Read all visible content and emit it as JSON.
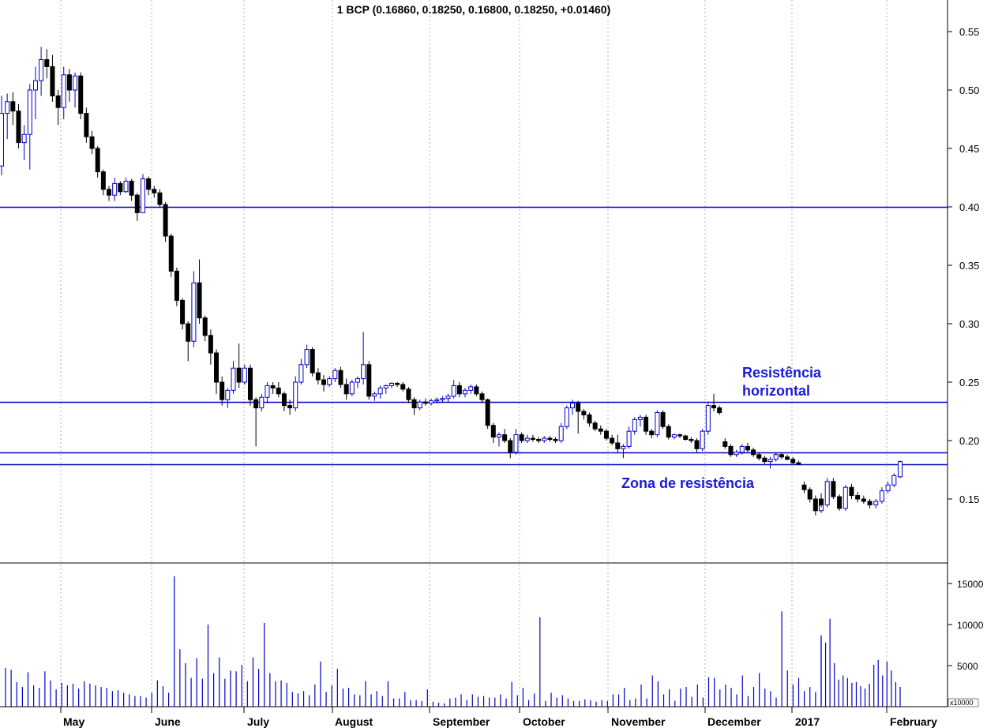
{
  "chart_data": {
    "type": "candlestick",
    "title": "1 BCP (0.16860, 0.18250, 0.16800, 0.18250, +0.01460)",
    "ylim": [
      0.1,
      0.575
    ],
    "y_ticks": [
      "0.55",
      "0.50",
      "0.45",
      "0.40",
      "0.35",
      "0.30",
      "0.25",
      "0.20",
      "0.15"
    ],
    "volume_ticks": [
      "15000",
      "10000",
      "5000"
    ],
    "volume_unit": "x10000",
    "months": [
      "May",
      "June",
      "July",
      "August",
      "September",
      "October",
      "November",
      "December",
      "2017",
      "February"
    ],
    "horizontal_lines": [
      0.4,
      0.233,
      0.19,
      0.18
    ],
    "annotations": [
      {
        "text": "Resistência",
        "anchor": "upper"
      },
      {
        "text": "horizontal",
        "anchor": "upper"
      },
      {
        "text": "Zona de resistência",
        "anchor": "lower"
      }
    ],
    "price_series": [
      [
        0.435,
        0.495,
        0.427,
        0.48
      ],
      [
        0.48,
        0.497,
        0.458,
        0.49
      ],
      [
        0.49,
        0.498,
        0.47,
        0.482
      ],
      [
        0.482,
        0.488,
        0.45,
        0.455
      ],
      [
        0.455,
        0.47,
        0.44,
        0.462
      ],
      [
        0.462,
        0.505,
        0.432,
        0.5
      ],
      [
        0.5,
        0.52,
        0.475,
        0.508
      ],
      [
        0.508,
        0.537,
        0.495,
        0.526
      ],
      [
        0.526,
        0.535,
        0.51,
        0.52
      ],
      [
        0.52,
        0.53,
        0.49,
        0.495
      ],
      [
        0.495,
        0.5,
        0.47,
        0.485
      ],
      [
        0.485,
        0.52,
        0.475,
        0.513
      ],
      [
        0.513,
        0.518,
        0.49,
        0.5
      ],
      [
        0.5,
        0.515,
        0.485,
        0.512
      ],
      [
        0.512,
        0.515,
        0.475,
        0.48
      ],
      [
        0.48,
        0.485,
        0.455,
        0.46
      ],
      [
        0.46,
        0.465,
        0.445,
        0.45
      ],
      [
        0.45,
        0.452,
        0.425,
        0.43
      ],
      [
        0.43,
        0.432,
        0.41,
        0.415
      ],
      [
        0.415,
        0.418,
        0.405,
        0.41
      ],
      [
        0.41,
        0.425,
        0.405,
        0.42
      ],
      [
        0.42,
        0.422,
        0.41,
        0.413
      ],
      [
        0.413,
        0.425,
        0.412,
        0.422
      ],
      [
        0.422,
        0.424,
        0.405,
        0.41
      ],
      [
        0.41,
        0.412,
        0.388,
        0.395
      ],
      [
        0.395,
        0.428,
        0.395,
        0.424
      ],
      [
        0.424,
        0.426,
        0.41,
        0.415
      ],
      [
        0.415,
        0.418,
        0.408,
        0.412
      ],
      [
        0.412,
        0.415,
        0.4,
        0.402
      ],
      [
        0.402,
        0.404,
        0.37,
        0.375
      ],
      [
        0.375,
        0.377,
        0.34,
        0.345
      ],
      [
        0.345,
        0.348,
        0.315,
        0.32
      ],
      [
        0.32,
        0.322,
        0.295,
        0.3
      ],
      [
        0.3,
        0.302,
        0.268,
        0.285
      ],
      [
        0.285,
        0.345,
        0.28,
        0.335
      ],
      [
        0.335,
        0.355,
        0.3,
        0.305
      ],
      [
        0.305,
        0.307,
        0.285,
        0.29
      ],
      [
        0.29,
        0.295,
        0.265,
        0.275
      ],
      [
        0.275,
        0.278,
        0.24,
        0.25
      ],
      [
        0.25,
        0.255,
        0.23,
        0.235
      ],
      [
        0.235,
        0.245,
        0.228,
        0.243
      ],
      [
        0.243,
        0.268,
        0.24,
        0.262
      ],
      [
        0.262,
        0.283,
        0.245,
        0.25
      ],
      [
        0.25,
        0.265,
        0.248,
        0.262
      ],
      [
        0.262,
        0.265,
        0.23,
        0.235
      ],
      [
        0.235,
        0.237,
        0.195,
        0.228
      ],
      [
        0.228,
        0.24,
        0.225,
        0.237
      ],
      [
        0.237,
        0.25,
        0.232,
        0.247
      ],
      [
        0.247,
        0.25,
        0.24,
        0.245
      ],
      [
        0.245,
        0.25,
        0.237,
        0.24
      ],
      [
        0.24,
        0.242,
        0.225,
        0.23
      ],
      [
        0.23,
        0.235,
        0.222,
        0.228
      ],
      [
        0.228,
        0.255,
        0.225,
        0.25
      ],
      [
        0.25,
        0.27,
        0.248,
        0.265
      ],
      [
        0.265,
        0.282,
        0.262,
        0.278
      ],
      [
        0.278,
        0.28,
        0.255,
        0.258
      ],
      [
        0.258,
        0.262,
        0.248,
        0.252
      ],
      [
        0.252,
        0.256,
        0.242,
        0.248
      ],
      [
        0.248,
        0.255,
        0.246,
        0.253
      ],
      [
        0.253,
        0.262,
        0.25,
        0.26
      ],
      [
        0.26,
        0.263,
        0.245,
        0.248
      ],
      [
        0.248,
        0.253,
        0.235,
        0.24
      ],
      [
        0.24,
        0.252,
        0.238,
        0.25
      ],
      [
        0.25,
        0.255,
        0.245,
        0.253
      ],
      [
        0.253,
        0.293,
        0.248,
        0.265
      ],
      [
        0.265,
        0.268,
        0.235,
        0.238
      ],
      [
        0.238,
        0.242,
        0.234,
        0.24
      ],
      [
        0.24,
        0.247,
        0.236,
        0.245
      ],
      [
        0.245,
        0.248,
        0.24,
        0.247
      ],
      [
        0.247,
        0.25,
        0.245,
        0.249
      ],
      [
        0.249,
        0.25,
        0.246,
        0.248
      ],
      [
        0.248,
        0.25,
        0.242,
        0.244
      ],
      [
        0.244,
        0.246,
        0.232,
        0.235
      ],
      [
        0.235,
        0.237,
        0.222,
        0.228
      ],
      [
        0.228,
        0.235,
        0.226,
        0.233
      ],
      [
        0.233,
        0.236,
        0.23,
        0.232
      ],
      [
        0.232,
        0.236,
        0.23,
        0.234
      ],
      [
        0.234,
        0.237,
        0.232,
        0.235
      ],
      [
        0.235,
        0.238,
        0.233,
        0.236
      ],
      [
        0.236,
        0.24,
        0.233,
        0.238
      ],
      [
        0.238,
        0.252,
        0.236,
        0.247
      ],
      [
        0.247,
        0.25,
        0.237,
        0.24
      ],
      [
        0.24,
        0.245,
        0.237,
        0.243
      ],
      [
        0.243,
        0.248,
        0.24,
        0.246
      ],
      [
        0.246,
        0.248,
        0.238,
        0.24
      ],
      [
        0.24,
        0.242,
        0.232,
        0.235
      ],
      [
        0.235,
        0.236,
        0.21,
        0.213
      ],
      [
        0.213,
        0.215,
        0.198,
        0.203
      ],
      [
        0.203,
        0.207,
        0.195,
        0.205
      ],
      [
        0.205,
        0.21,
        0.198,
        0.2
      ],
      [
        0.2,
        0.202,
        0.185,
        0.19
      ],
      [
        0.19,
        0.21,
        0.188,
        0.205
      ],
      [
        0.205,
        0.207,
        0.198,
        0.2
      ],
      [
        0.2,
        0.205,
        0.198,
        0.202
      ],
      [
        0.202,
        0.205,
        0.199,
        0.201
      ],
      [
        0.201,
        0.203,
        0.198,
        0.2
      ],
      [
        0.2,
        0.204,
        0.198,
        0.202
      ],
      [
        0.202,
        0.204,
        0.199,
        0.201
      ],
      [
        0.201,
        0.203,
        0.198,
        0.2
      ],
      [
        0.2,
        0.215,
        0.198,
        0.212
      ],
      [
        0.212,
        0.23,
        0.21,
        0.228
      ],
      [
        0.228,
        0.235,
        0.222,
        0.232
      ],
      [
        0.232,
        0.234,
        0.206,
        0.225
      ],
      [
        0.225,
        0.227,
        0.218,
        0.222
      ],
      [
        0.222,
        0.224,
        0.212,
        0.215
      ],
      [
        0.215,
        0.217,
        0.208,
        0.21
      ],
      [
        0.21,
        0.213,
        0.205,
        0.208
      ],
      [
        0.208,
        0.21,
        0.2,
        0.202
      ],
      [
        0.202,
        0.205,
        0.196,
        0.198
      ],
      [
        0.198,
        0.205,
        0.19,
        0.193
      ],
      [
        0.193,
        0.197,
        0.185,
        0.195
      ],
      [
        0.195,
        0.212,
        0.193,
        0.208
      ],
      [
        0.208,
        0.22,
        0.205,
        0.218
      ],
      [
        0.218,
        0.222,
        0.212,
        0.22
      ],
      [
        0.22,
        0.222,
        0.205,
        0.208
      ],
      [
        0.208,
        0.21,
        0.202,
        0.205
      ],
      [
        0.205,
        0.226,
        0.203,
        0.224
      ],
      [
        0.224,
        0.226,
        0.21,
        0.212
      ],
      [
        0.212,
        0.214,
        0.201,
        0.203
      ],
      [
        0.203,
        0.206,
        0.201,
        0.205
      ],
      [
        0.205,
        0.206,
        0.202,
        0.204
      ],
      [
        0.204,
        0.205,
        0.2,
        0.201
      ],
      [
        0.201,
        0.203,
        0.198,
        0.2
      ],
      [
        0.2,
        0.202,
        0.19,
        0.193
      ],
      [
        0.193,
        0.21,
        0.191,
        0.208
      ],
      [
        0.208,
        0.232,
        0.205,
        0.23
      ],
      [
        0.23,
        0.24,
        0.225,
        0.228
      ],
      [
        0.228,
        0.23,
        0.222,
        0.224
      ],
      [
        0.199,
        0.202,
        0.193,
        0.195
      ],
      [
        0.195,
        0.197,
        0.186,
        0.188
      ],
      [
        0.188,
        0.192,
        0.186,
        0.19
      ],
      [
        0.19,
        0.197,
        0.188,
        0.195
      ],
      [
        0.195,
        0.198,
        0.19,
        0.192
      ],
      [
        0.192,
        0.194,
        0.186,
        0.188
      ],
      [
        0.188,
        0.19,
        0.183,
        0.185
      ],
      [
        0.185,
        0.187,
        0.18,
        0.182
      ],
      [
        0.182,
        0.186,
        0.176,
        0.184
      ],
      [
        0.184,
        0.19,
        0.182,
        0.188
      ],
      [
        0.188,
        0.19,
        0.184,
        0.186
      ],
      [
        0.186,
        0.188,
        0.183,
        0.184
      ],
      [
        0.184,
        0.186,
        0.18,
        0.181
      ],
      [
        0.181,
        0.183,
        0.179,
        0.18
      ],
      [
        0.162,
        0.165,
        0.155,
        0.158
      ],
      [
        0.158,
        0.16,
        0.147,
        0.15
      ],
      [
        0.15,
        0.153,
        0.136,
        0.14
      ],
      [
        0.14,
        0.152,
        0.138,
        0.15
      ],
      [
        0.15,
        0.155,
        0.143,
        0.145
      ],
      [
        0.145,
        0.168,
        0.143,
        0.165
      ],
      [
        0.165,
        0.168,
        0.15,
        0.152
      ],
      [
        0.152,
        0.154,
        0.14,
        0.142
      ],
      [
        0.142,
        0.162,
        0.14,
        0.16
      ],
      [
        0.16,
        0.163,
        0.15,
        0.153
      ],
      [
        0.153,
        0.156,
        0.147,
        0.15
      ],
      [
        0.15,
        0.153,
        0.146,
        0.148
      ],
      [
        0.148,
        0.15,
        0.142,
        0.145
      ],
      [
        0.145,
        0.15,
        0.142,
        0.148
      ],
      [
        0.148,
        0.16,
        0.146,
        0.157
      ],
      [
        0.157,
        0.165,
        0.155,
        0.162
      ],
      [
        0.162,
        0.172,
        0.16,
        0.17
      ],
      [
        0.169,
        0.183,
        0.168,
        0.182
      ]
    ],
    "volume_series": [
      4700,
      4500,
      3000,
      2400,
      4200,
      2600,
      2300,
      4300,
      3200,
      2100,
      2900,
      2600,
      2800,
      2200,
      3100,
      2800,
      2600,
      2400,
      2300,
      1900,
      2000,
      1700,
      1500,
      1300,
      1300,
      1100,
      1700,
      3200,
      2500,
      1700,
      15900,
      7000,
      5300,
      3500,
      5900,
      3400,
      10000,
      4100,
      6000,
      3400,
      4400,
      4300,
      5100,
      3100,
      6000,
      4600,
      10200,
      4100,
      3100,
      3200,
      2900,
      1800,
      1600,
      1900,
      1400,
      2700,
      5500,
      1800,
      2600,
      4600,
      2200,
      2300,
      1500,
      1400,
      3100,
      1500,
      1900,
      1300,
      3100,
      1000,
      1000,
      1800,
      800,
      800,
      700,
      2100,
      600,
      500,
      400,
      1000,
      1100,
      1500,
      800,
      1500,
      1200,
      1300,
      1100,
      1100,
      1500,
      1000,
      3000,
      1400,
      2300,
      800,
      1600,
      10900,
      700,
      1700,
      1100,
      1400,
      1000,
      700,
      700,
      900,
      800,
      600,
      800,
      700,
      1500,
      1500,
      2300,
      800,
      1000,
      2700,
      1000,
      3800,
      3100,
      1500,
      2100,
      700,
      2200,
      2400,
      1200,
      2700,
      1100,
      3600,
      3500,
      2100,
      2700,
      2300,
      1500,
      3800,
      1300,
      2400,
      4100,
      2200,
      1900,
      1100,
      11600,
      4400,
      2700,
      3500,
      1900,
      2400,
      1800,
      8400,
      8700,
      7800,
      10700,
      5300,
      3300,
      3800,
      3500,
      2900,
      3000,
      2500,
      2200,
      2800,
      5100,
      5700,
      3800,
      5500,
      4400,
      3000,
      2400
    ],
    "colors": {
      "line": "#0000c8",
      "up": "#0000cc",
      "down": "#000000",
      "grid": "#b4b4b4",
      "volume": "#0000c8",
      "annotation": "#1a1adc"
    }
  }
}
